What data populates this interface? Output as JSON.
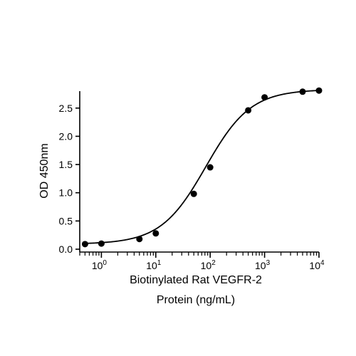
{
  "chart_data": {
    "type": "scatter",
    "title": "",
    "xlabel_lines": [
      "Biotinylated Rat VEGFR-2",
      "Protein (ng/mL)"
    ],
    "ylabel": "OD 450nm",
    "x_scale": "log10",
    "xlim": [
      0.4,
      10000
    ],
    "ylim": [
      0,
      2.8
    ],
    "x_ticks": [
      {
        "value": 1,
        "base": "10",
        "exp": "0"
      },
      {
        "value": 10,
        "base": "10",
        "exp": "1"
      },
      {
        "value": 100,
        "base": "10",
        "exp": "2"
      },
      {
        "value": 1000,
        "base": "10",
        "exp": "3"
      },
      {
        "value": 10000,
        "base": "10",
        "exp": "4"
      }
    ],
    "y_ticks": [
      {
        "value": 0,
        "label": "0.0"
      },
      {
        "value": 0.5,
        "label": "0.5"
      },
      {
        "value": 1.0,
        "label": "1.0"
      },
      {
        "value": 1.5,
        "label": "1.5"
      },
      {
        "value": 2.0,
        "label": "2.0"
      },
      {
        "value": 2.5,
        "label": "2.5"
      }
    ],
    "grid": false,
    "legend": "none",
    "series": [
      {
        "points": [
          {
            "x": 0.5,
            "y": 0.09
          },
          {
            "x": 1,
            "y": 0.1
          },
          {
            "x": 5,
            "y": 0.18
          },
          {
            "x": 10,
            "y": 0.28
          },
          {
            "x": 50,
            "y": 0.98
          },
          {
            "x": 100,
            "y": 1.45
          },
          {
            "x": 500,
            "y": 2.46
          },
          {
            "x": 1000,
            "y": 2.69
          },
          {
            "x": 5000,
            "y": 2.79
          },
          {
            "x": 10000,
            "y": 2.81
          }
        ],
        "fit": {
          "model": "4PL",
          "bottom": 0.09,
          "top": 2.83,
          "ec50": 83,
          "hill": 1.05
        },
        "color": "#000000"
      }
    ]
  }
}
